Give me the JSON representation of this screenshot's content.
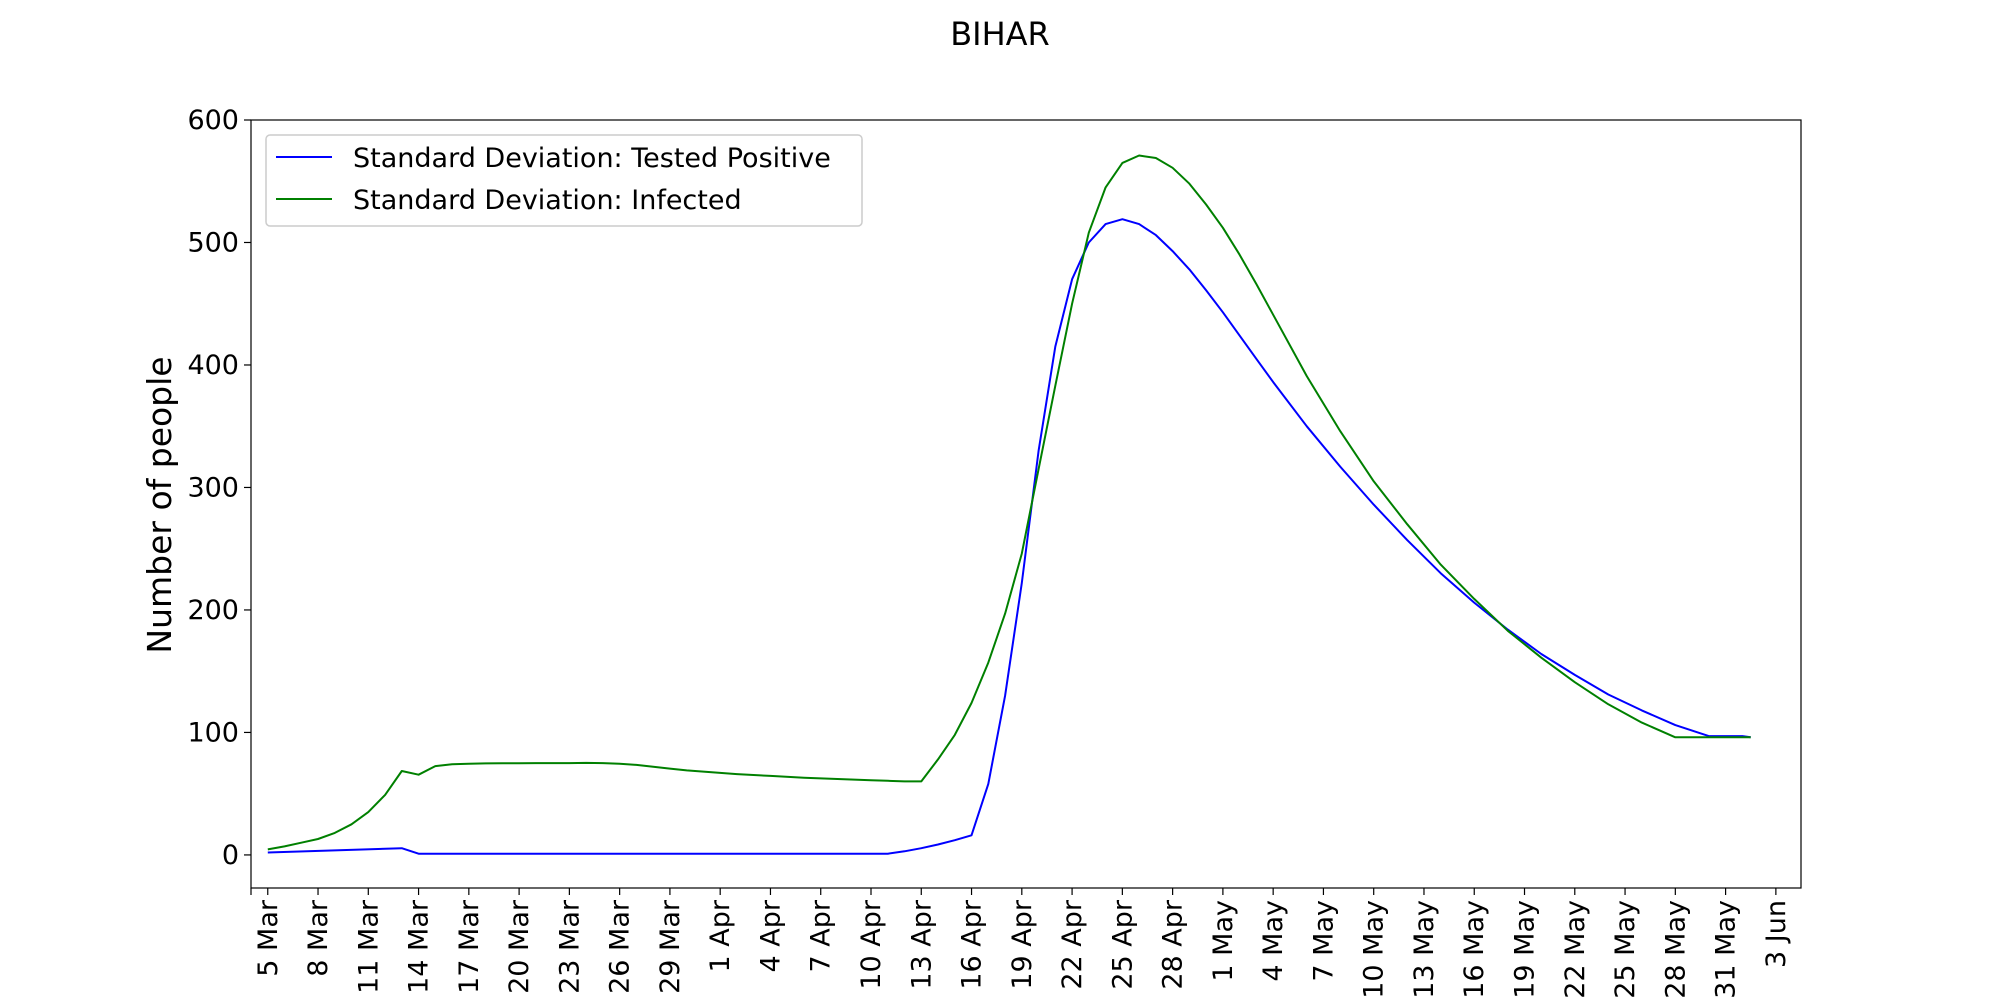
{
  "chart_data": {
    "type": "line",
    "title": "BIHAR",
    "xlabel": "",
    "ylabel": "Number of people",
    "x_start_date": "2020-03-05",
    "x_end_date": "2020-06-03",
    "xlim_days": [
      -1,
      91.5
    ],
    "ylim": [
      -27,
      600
    ],
    "yticks": [
      0,
      100,
      200,
      300,
      400,
      500,
      600
    ],
    "xtick_days": [
      -1,
      0,
      3,
      6,
      9,
      12,
      15,
      18,
      21,
      24,
      27,
      30,
      33,
      36,
      39,
      42,
      45,
      48,
      51,
      54,
      57,
      60,
      63,
      66,
      69,
      72,
      75,
      78,
      81,
      84,
      87,
      90
    ],
    "xtick_labels": [
      "",
      "5 Mar",
      "8 Mar",
      "11 Mar",
      "14 Mar",
      "17 Mar",
      "20 Mar",
      "23 Mar",
      "26 Mar",
      "29 Mar",
      "1 Apr",
      "4 Apr",
      "7 Apr",
      "10 Apr",
      "13 Apr",
      "16 Apr",
      "19 Apr",
      "22 Apr",
      "25 Apr",
      "28 Apr",
      "1 May",
      "4 May",
      "7 May",
      "10 May",
      "13 May",
      "16 May",
      "19 May",
      "22 May",
      "25 May",
      "28 May",
      "31 May",
      "3 Jun"
    ],
    "legend_position": "top-left",
    "grid": false,
    "series": [
      {
        "name": "Standard Deviation: Tested Positive",
        "color": "#0000ff",
        "x": [
          0,
          8,
          9,
          10,
          37,
          38,
          39,
          40,
          41,
          42,
          43,
          44,
          45,
          46,
          47,
          48,
          49,
          50,
          51,
          52,
          53,
          54,
          55,
          56,
          57,
          58,
          59,
          60,
          62,
          64,
          66,
          68,
          70,
          72,
          74,
          76,
          78,
          80,
          82,
          84,
          86,
          88,
          88.5
        ],
        "y": [
          2,
          5.5,
          1,
          1,
          1,
          3,
          5.5,
          8.5,
          12,
          16,
          58,
          130,
          222,
          330,
          415,
          470,
          500,
          515,
          519,
          515,
          506,
          493,
          478,
          461,
          443,
          424,
          405,
          386,
          350,
          317,
          286,
          257,
          230,
          206,
          184,
          164,
          147,
          131,
          118,
          106,
          97,
          97,
          96
        ]
      },
      {
        "name": "Standard Deviation: Infected",
        "color": "#008000",
        "x": [
          0,
          1,
          2,
          3,
          4,
          5,
          6,
          7,
          8,
          9,
          10,
          11,
          12,
          13,
          14,
          15,
          16,
          17,
          18,
          19,
          20,
          21,
          22,
          23,
          24,
          25,
          26,
          27,
          28,
          30,
          32,
          34,
          36,
          37,
          38,
          39,
          40,
          41,
          42,
          43,
          44,
          45,
          46,
          47,
          48,
          49,
          50,
          51,
          52,
          53,
          54,
          55,
          56,
          57,
          58,
          59,
          60,
          62,
          64,
          66,
          68,
          70,
          72,
          74,
          76,
          78,
          80,
          82,
          84,
          86,
          88,
          88.5
        ],
        "y": [
          4.5,
          7,
          10,
          13,
          18,
          25,
          35,
          49,
          68.5,
          65.5,
          72.5,
          74,
          74.5,
          74.7,
          74.8,
          74.9,
          75,
          75,
          75,
          75.1,
          75,
          74.5,
          73.5,
          72,
          70.5,
          69,
          68,
          67,
          66,
          64.5,
          63,
          62,
          61,
          60.5,
          60,
          60,
          78,
          98,
          124,
          157,
          197,
          246,
          315,
          383,
          450,
          508,
          545,
          565,
          571,
          569,
          561,
          548,
          531,
          512,
          490,
          466,
          441,
          391,
          346,
          305,
          270,
          237,
          209,
          183,
          161,
          141,
          123,
          108,
          96,
          96,
          96,
          96
        ]
      }
    ]
  }
}
